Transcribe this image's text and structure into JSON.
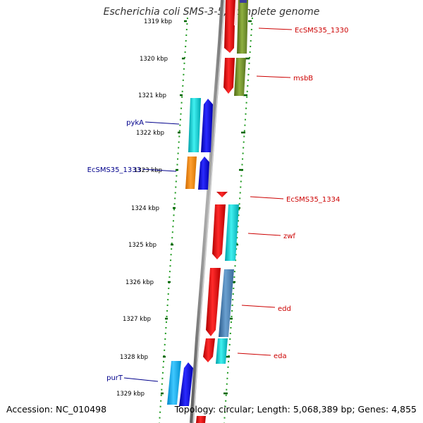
{
  "title": "Escherichia coli SMS-3-5, complete genome",
  "accession": "Accession: NC_010498",
  "summary": "Topology: circular; Length: 5,068,389 bp; Genes: 4,855",
  "ticks": [
    "1319 kbp",
    "1320 kbp",
    "1321 kbp",
    "1322 kbp",
    "1323 kbp",
    "1324 kbp",
    "1325 kbp",
    "1326 kbp",
    "1327 kbp",
    "1328 kbp",
    "1329 kbp"
  ],
  "gene_labels": [
    {
      "text": "EcSMS35_1330",
      "color": "#cc0000"
    },
    {
      "text": "msbB",
      "color": "#cc0000"
    },
    {
      "text": "pykA",
      "color": "#00008b"
    },
    {
      "text": "EcSMS35_1333",
      "color": "#00008b"
    },
    {
      "text": "EcSMS35_1334",
      "color": "#cc0000"
    },
    {
      "text": "zwf",
      "color": "#cc0000"
    },
    {
      "text": "edd",
      "color": "#cc0000"
    },
    {
      "text": "eda",
      "color": "#cc0000"
    },
    {
      "text": "purT",
      "color": "#00008b"
    }
  ],
  "colors": {
    "forward_cds": "#ff0000",
    "reverse_cds": "#0000ee",
    "cyan_feature": "#00c8c8",
    "olive_feature": "#6b8e23",
    "orange_feature": "#ff8c00",
    "light_blue_feature": "#00aaff",
    "backbone": "#888888",
    "tick_green": "#006400"
  }
}
